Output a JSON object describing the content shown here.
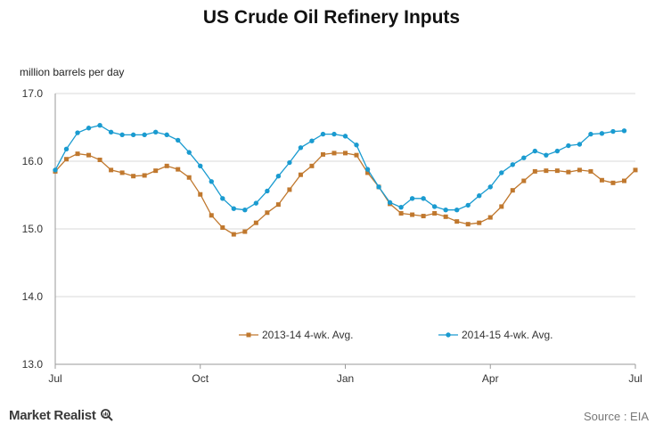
{
  "header": {
    "title": "US Crude Oil Refinery Inputs",
    "unit_label": "million barrels per day"
  },
  "footer": {
    "brand": "Market Realist",
    "brand_icon": "magnifier-icon",
    "source": "Source : EIA"
  },
  "chart_data": {
    "type": "line",
    "title": "US Crude Oil Refinery Inputs",
    "ylabel": "million barrels per day",
    "xlabel": "",
    "ylim": [
      13.0,
      17.0
    ],
    "yticks": [
      "13.0",
      "14.0",
      "15.0",
      "16.0",
      "17.0"
    ],
    "xticks": [
      "Jul",
      "Oct",
      "Jan",
      "Apr",
      "Jul"
    ],
    "xtick_weeks": [
      0,
      13,
      26,
      39,
      52
    ],
    "grid": true,
    "legend_position": "bottom-center",
    "weeks": [
      0,
      1,
      2,
      3,
      4,
      5,
      6,
      7,
      8,
      9,
      10,
      11,
      12,
      13,
      14,
      15,
      16,
      17,
      18,
      19,
      20,
      21,
      22,
      23,
      24,
      25,
      26,
      27,
      28,
      29,
      30,
      31,
      32,
      33,
      34,
      35,
      36,
      37,
      38,
      39,
      40,
      41,
      42,
      43,
      44,
      45,
      46,
      47,
      48,
      49,
      50,
      51,
      52
    ],
    "series": [
      {
        "name": "2013-14 4-wk. Avg.",
        "color": "#c0782e",
        "marker": "square",
        "values": [
          15.85,
          16.03,
          16.11,
          16.09,
          16.02,
          15.87,
          15.83,
          15.78,
          15.79,
          15.86,
          15.93,
          15.88,
          15.76,
          15.51,
          15.2,
          15.02,
          14.92,
          14.96,
          15.09,
          15.24,
          15.36,
          15.58,
          15.8,
          15.93,
          16.1,
          16.12,
          16.12,
          16.09,
          15.83,
          15.62,
          15.37,
          15.23,
          15.21,
          15.19,
          15.23,
          15.18,
          15.11,
          15.07,
          15.09,
          15.17,
          15.33,
          15.57,
          15.71,
          15.85,
          15.86,
          15.86,
          15.84,
          15.87,
          15.85,
          15.72,
          15.68,
          15.71,
          15.87
        ]
      },
      {
        "name": "2014-15 4-wk. Avg.",
        "color": "#1a9bd0",
        "marker": "circle",
        "values": [
          15.87,
          16.18,
          16.42,
          16.49,
          16.53,
          16.43,
          16.39,
          16.39,
          16.39,
          16.43,
          16.39,
          16.31,
          16.13,
          15.93,
          15.7,
          15.45,
          15.3,
          15.28,
          15.38,
          15.56,
          15.78,
          15.98,
          16.2,
          16.3,
          16.4,
          16.4,
          16.37,
          16.24,
          15.88,
          15.62,
          15.39,
          15.32,
          15.45,
          15.45,
          15.33,
          15.28,
          15.28,
          15.35,
          15.49,
          15.62,
          15.83,
          15.95,
          16.05,
          16.15,
          16.09,
          16.15,
          16.23,
          16.25,
          16.4,
          16.41,
          16.44,
          16.45
        ]
      }
    ]
  }
}
